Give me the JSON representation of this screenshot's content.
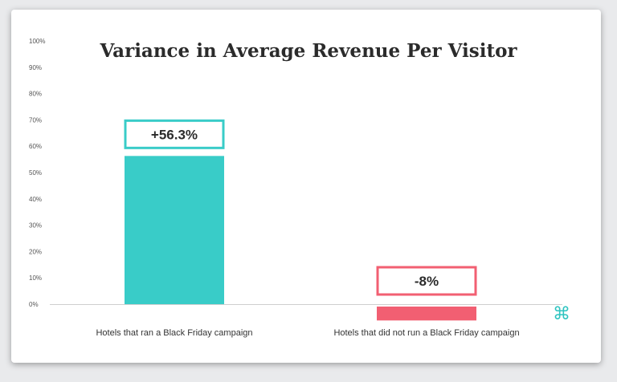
{
  "chart_data": {
    "type": "bar",
    "title": "Variance in Average Revenue Per Visitor",
    "categories": [
      "Hotels that ran a Black Friday campaign",
      "Hotels that did not run a Black Friday campaign"
    ],
    "values": [
      56.3,
      -8
    ],
    "data_labels": [
      "+56.3%",
      "-8%"
    ],
    "colors": [
      "#39ccc8",
      "#f25f72"
    ],
    "label_border_colors": [
      "#39ccc8",
      "#f25f72"
    ],
    "ylim": [
      0,
      100
    ],
    "yticks": [
      0,
      10,
      20,
      30,
      40,
      50,
      60,
      70,
      80,
      90,
      100
    ],
    "ytick_labels": [
      "0%",
      "10%",
      "20%",
      "30%",
      "40%",
      "50%",
      "60%",
      "70%",
      "80%",
      "90%",
      "100%"
    ],
    "xlabel": "",
    "ylabel": "",
    "grid": false,
    "legend": "none"
  },
  "logo": {
    "icon": "command-icon",
    "glyph": "⌘",
    "color": "#2ec4c0"
  }
}
